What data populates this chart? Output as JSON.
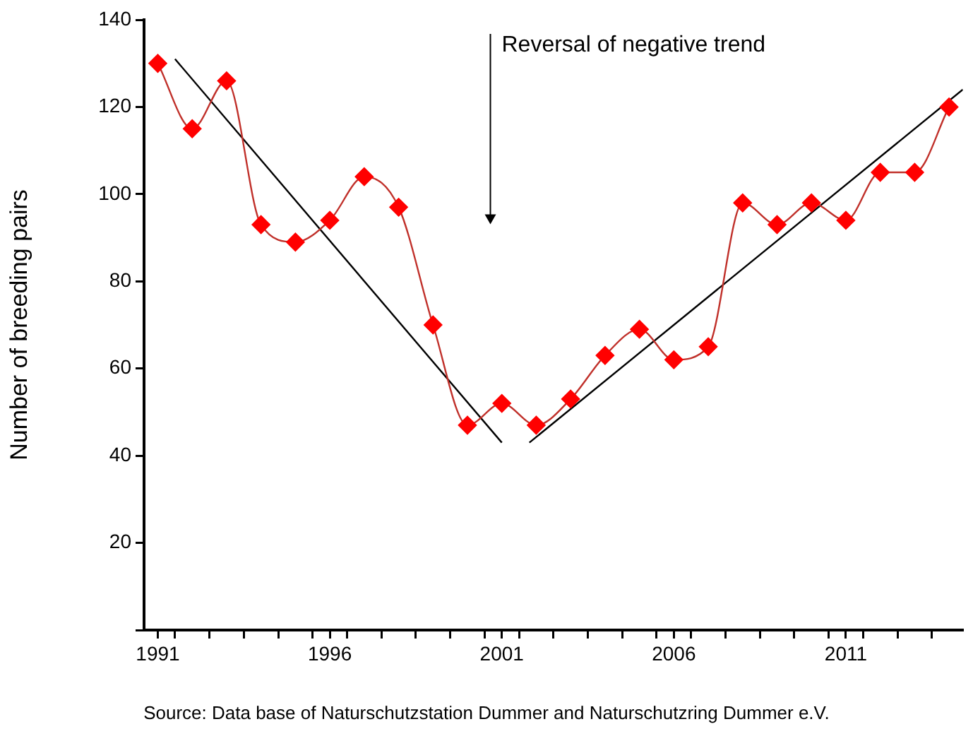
{
  "chart_data": {
    "type": "line",
    "ylabel": "Number of breeding pairs",
    "x": [
      1991,
      1992,
      1993,
      1994,
      1995,
      1996,
      1997,
      1998,
      1999,
      2000,
      2001,
      2002,
      2003,
      2004,
      2005,
      2006,
      2007,
      2008,
      2009,
      2010,
      2011,
      2012,
      2013,
      2014
    ],
    "series": [
      {
        "color": "#ff0000",
        "marker": "diamond",
        "values": [
          130,
          115,
          126,
          93,
          89,
          94,
          104,
          97,
          70,
          47,
          52,
          47,
          53,
          63,
          69,
          62,
          65,
          98,
          93,
          98,
          94,
          105,
          105,
          120
        ]
      },
      {
        "color": "#000000",
        "marker": "none",
        "x": [
          1991.5,
          2001
        ],
        "values": [
          131,
          43
        ]
      },
      {
        "color": "#000000",
        "marker": "none",
        "x": [
          2001.8,
          2014.4
        ],
        "values": [
          43,
          124
        ]
      }
    ],
    "xlim": [
      1990.6,
      2014.4
    ],
    "xticks": [
      {
        "value": 1991,
        "label": "1991"
      },
      {
        "value": 1996,
        "label": "1996"
      },
      {
        "value": 2001,
        "label": "2001"
      },
      {
        "value": 2006,
        "label": "2006"
      },
      {
        "value": 2011,
        "label": "2011"
      },
      {
        "value": 1991.5,
        "label": null
      },
      {
        "value": 1992.5,
        "label": null
      },
      {
        "value": 1993.5,
        "label": null
      },
      {
        "value": 1994.5,
        "label": null
      },
      {
        "value": 1995.5,
        "label": null
      },
      {
        "value": 1996.5,
        "label": null
      },
      {
        "value": 1997.5,
        "label": null
      },
      {
        "value": 1998.5,
        "label": null
      },
      {
        "value": 1999.5,
        "label": null
      },
      {
        "value": 2000.5,
        "label": null
      },
      {
        "value": 2001.5,
        "label": null
      },
      {
        "value": 2002.5,
        "label": null
      },
      {
        "value": 2003.5,
        "label": null
      },
      {
        "value": 2004.5,
        "label": null
      },
      {
        "value": 2005.5,
        "label": null
      },
      {
        "value": 2006.5,
        "label": null
      },
      {
        "value": 2007.5,
        "label": null
      },
      {
        "value": 2008.5,
        "label": null
      },
      {
        "value": 2009.5,
        "label": null
      },
      {
        "value": 2010.5,
        "label": null
      },
      {
        "value": 2011.5,
        "label": null
      },
      {
        "value": 2012.5,
        "label": null
      },
      {
        "value": 2013.5,
        "label": null
      }
    ],
    "ylim": [
      0,
      140
    ],
    "yticks": [
      {
        "value": 0,
        "label": null
      },
      20,
      40,
      60,
      80,
      100,
      120,
      140
    ],
    "annotations": [
      "Reversal of negative trend",
      "Source: Data base of Naturschutzstation Dummer and Naturschutzring Dummer e.V."
    ],
    "grid": false,
    "legend": false
  }
}
